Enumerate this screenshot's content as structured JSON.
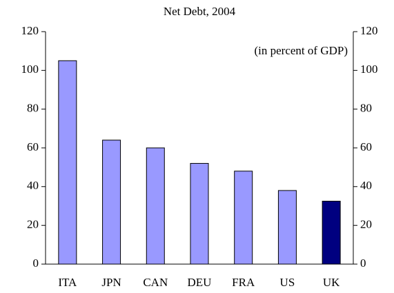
{
  "chart_data": {
    "type": "bar",
    "title": "Net Debt, 2004",
    "annotation": "(in percent of GDP)",
    "categories": [
      "ITA",
      "JPN",
      "CAN",
      "DEU",
      "FRA",
      "US",
      "UK"
    ],
    "values": [
      105,
      64,
      60,
      52,
      48,
      38,
      32.5
    ],
    "colors": [
      "#9999ff",
      "#9999ff",
      "#9999ff",
      "#9999ff",
      "#9999ff",
      "#9999ff",
      "#000080"
    ],
    "ylim": [
      0,
      120
    ],
    "yticks": [
      0,
      20,
      40,
      60,
      80,
      100,
      120
    ],
    "y2lim": [
      0,
      120
    ],
    "y2ticks": [
      0,
      20,
      40,
      60,
      80,
      100,
      120
    ]
  }
}
